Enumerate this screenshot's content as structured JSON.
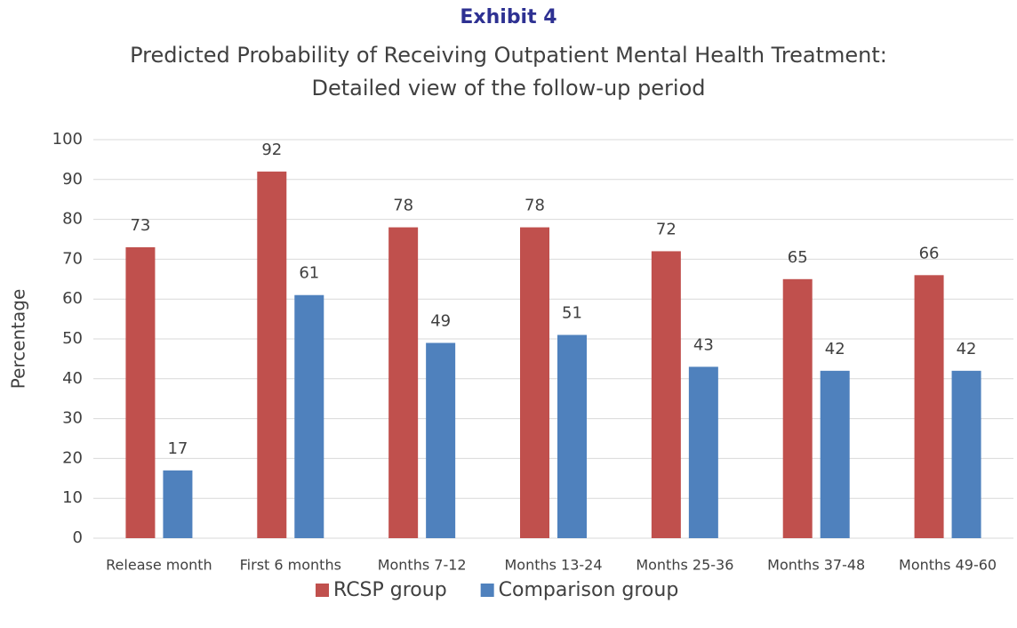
{
  "chart_data": {
    "type": "bar",
    "title": "Exhibit 4",
    "subtitle": [
      "Predicted Probability of Receiving Outpatient Mental Health Treatment:",
      "Detailed view of the follow-up period"
    ],
    "y_label": "Percentage",
    "categories": [
      "Release month",
      "First 6 months",
      "Months 7-12",
      "Months 13-24",
      "Months 25-36",
      "Months 37-48",
      "Months 49-60"
    ],
    "series": [
      {
        "name": "RCSP group",
        "color": "#c0504d",
        "values": [
          73,
          92,
          78,
          78,
          72,
          65,
          66
        ]
      },
      {
        "name": "Comparison group",
        "color": "#4f81bd",
        "values": [
          17,
          61,
          49,
          51,
          43,
          42,
          42
        ]
      }
    ],
    "ylim": [
      0,
      100
    ],
    "yticks": [
      0,
      10,
      20,
      30,
      40,
      50,
      60,
      70,
      80,
      90,
      100
    ],
    "grid": true,
    "legend": "bottom"
  }
}
